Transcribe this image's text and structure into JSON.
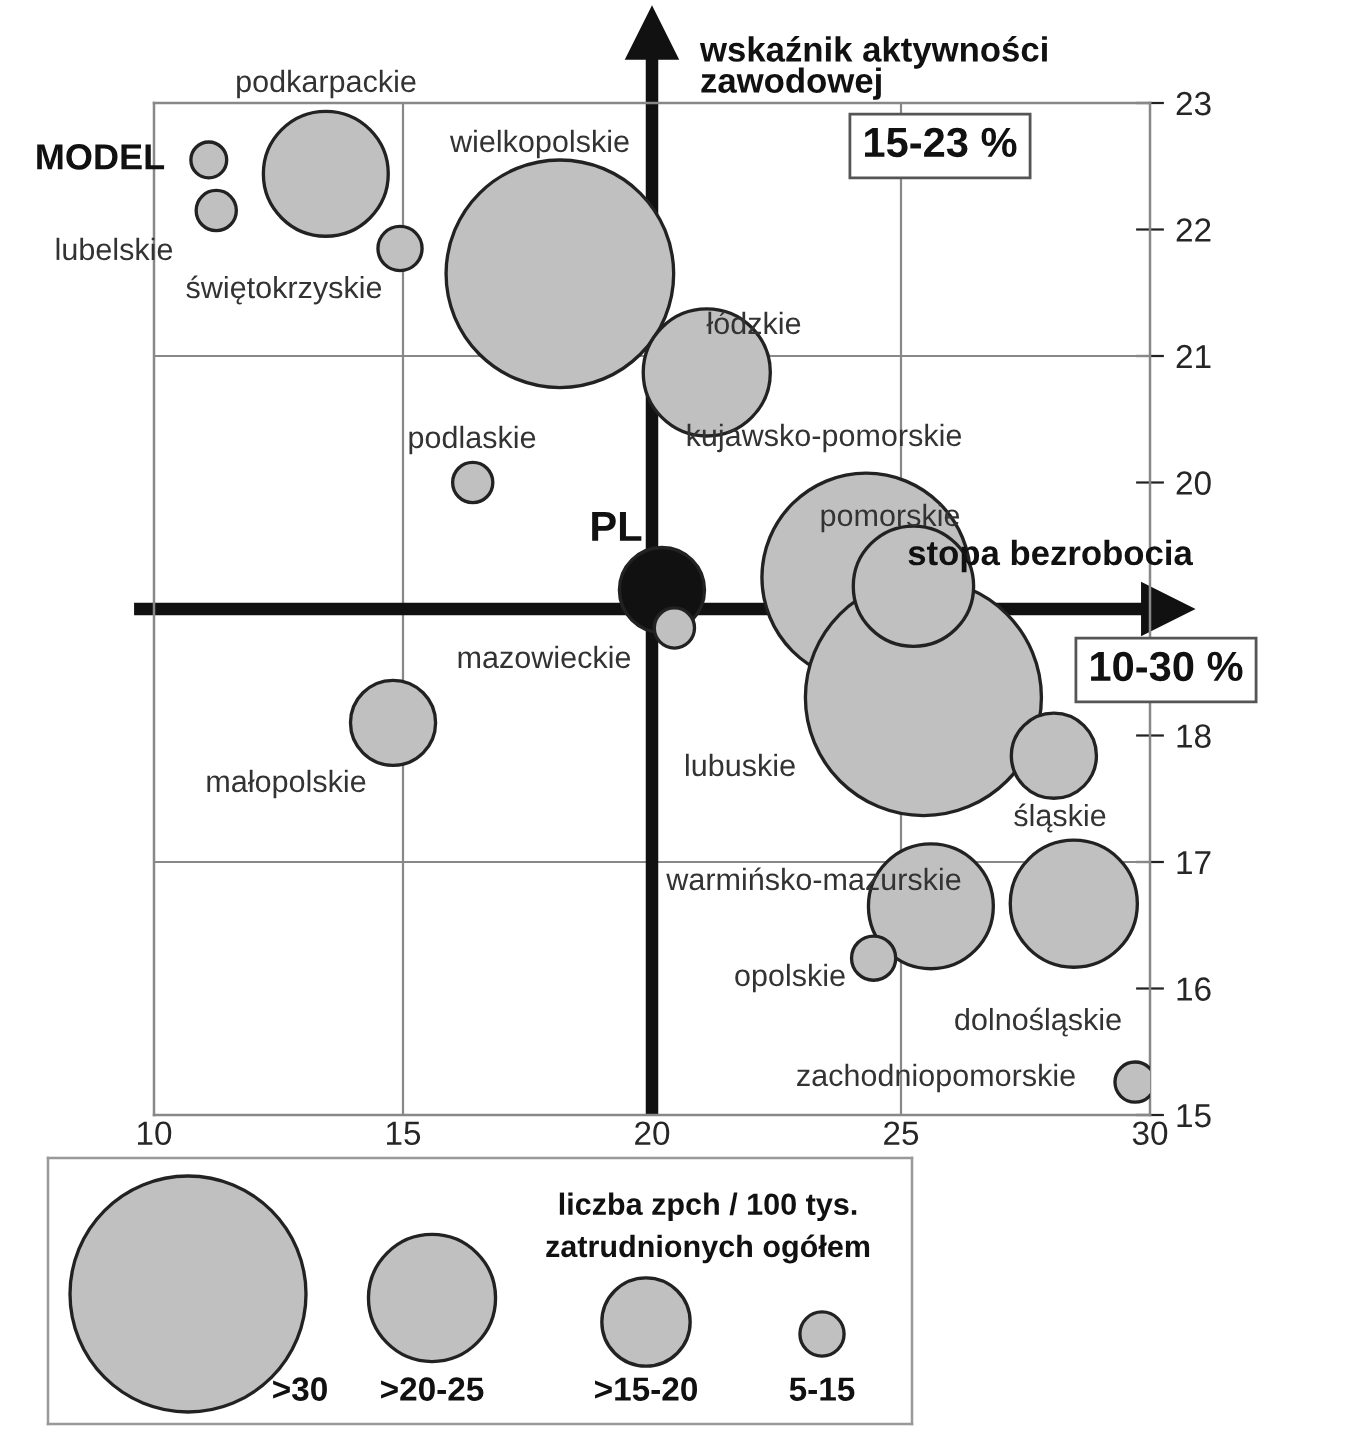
{
  "chart_data": {
    "type": "bubble",
    "xlabel": "stopa bezrobocia",
    "ylabel": "wskaźnik aktywności\nzawodowej",
    "legend_title": "liczba zpch / 100 tys.\nzatrudnionych ogółem",
    "xlim": [
      10,
      30
    ],
    "ylim": [
      15,
      23
    ],
    "xticks": [
      10,
      15,
      20,
      25,
      30
    ],
    "yticks": [
      15,
      16,
      17,
      18,
      20,
      21,
      22,
      23
    ],
    "x": [
      11.1,
      13.45,
      11.25,
      14.94,
      18.15,
      21.1,
      16.4,
      20.2,
      20.45,
      14.8,
      24.3,
      25.45,
      25.25,
      28.07,
      25.6,
      28.47,
      24.45,
      29.7
    ],
    "values": [
      22.55,
      22.44,
      22.15,
      21.85,
      21.65,
      20.87,
      20.0,
      19.15,
      18.85,
      18.1,
      19.25,
      18.3,
      19.18,
      17.84,
      16.65,
      16.67,
      16.24,
      15.26
    ],
    "sizes": [
      0.023,
      0.28,
      0.029,
      0.035,
      0.93,
      0.29,
      0.029,
      0.13,
      0.029,
      0.13,
      0.78,
      1,
      0.26,
      0.13,
      0.28,
      0.29,
      0.035,
      0.029
    ],
    "colors": [
      "#c0c0c0",
      "#c0c0c0",
      "#c0c0c0",
      "#c0c0c0",
      "#c0c0c0",
      "#c0c0c0",
      "#c0c0c0",
      "#111111",
      "#c0c0c0",
      "#c0c0c0",
      "#c0c0c0",
      "#c0c0c0",
      "#c0c0c0",
      "#c0c0c0",
      "#c0c0c0",
      "#c0c0c0",
      "#c0c0c0",
      "#c0c0c0"
    ],
    "size_legend": [
      {
        "value": 1,
        "label": ">30"
      },
      {
        "value": 0.29,
        "label": ">20-25"
      },
      {
        "value": 0.14,
        "label": ">15-20"
      },
      {
        "value": 0.035,
        "label": "5-15"
      }
    ],
    "ref_lines": [
      {
        "axis": "x",
        "value": 15,
        "color": "#888888"
      },
      {
        "axis": "x",
        "value": 25,
        "color": "#888888"
      },
      {
        "axis": "y",
        "value": 17,
        "color": "#888888"
      },
      {
        "axis": "y",
        "value": 21,
        "color": "#888888"
      },
      {
        "axis": "x",
        "value": 20,
        "color": "#111111"
      },
      {
        "axis": "y",
        "value": 19,
        "color": "#111111"
      }
    ],
    "annotations": [
      "MODEL",
      "podkarpackie",
      "lubelskie",
      "świętokrzyskie",
      "wielkopolskie",
      "łódzkie",
      "podlaskie",
      "PL",
      "mazowieckie",
      "małopolskie",
      "kujawsko-pomorskie",
      "lubuskie",
      "pomorskie",
      "śląskie",
      "warmińsko-mazurskie",
      "dolnośląskie",
      "opolskie",
      "zachodniopomorskie",
      "15-23 %",
      "10-30 %"
    ]
  }
}
